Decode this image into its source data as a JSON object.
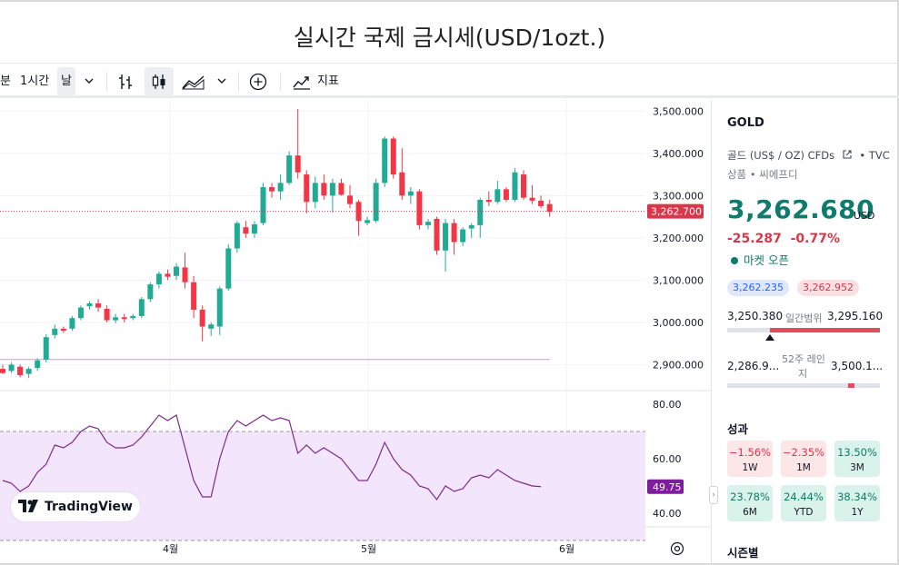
{
  "page_title": "실시간 국제 금시세(USD/1ozt.)",
  "toolbar": {
    "partial_interval": "분",
    "interval_1h": "1시간",
    "interval_day": "날",
    "indicators_label": "지표"
  },
  "chart": {
    "price_axis": [
      "3,500.000",
      "3,400.000",
      "3,300.000",
      "3,200.000",
      "3,100.000",
      "3,000.000",
      "2,900.000"
    ],
    "price_ticks": [
      3500,
      3400,
      3300,
      3200,
      3100,
      3000,
      2900
    ],
    "last_price_label": "3,262.700",
    "last_price": 3262.7,
    "reference_line": 2912,
    "rsi_axis": [
      "80.00",
      "60.00",
      "40.00"
    ],
    "rsi_ticks": [
      80,
      60,
      40
    ],
    "rsi_last_label": "49.75",
    "rsi_band": [
      70,
      30
    ],
    "time_axis": [
      "4월",
      "5월",
      "6월"
    ],
    "logo_text": "TradingView",
    "colors": {
      "up": "#22ab94",
      "down": "#f23645",
      "rsi": "#7e2a8a",
      "rsi_band_fill": "#f3e5fb",
      "last_price_bg": "#d7374b",
      "rsi_label_bg": "#7e1e9c"
    }
  },
  "chart_data": {
    "type": "candlestick",
    "price_range": [
      2860,
      3520
    ],
    "rsi_range": [
      35,
      85
    ],
    "candles": [
      [
        2890,
        2900,
        2878,
        2880
      ],
      [
        2885,
        2905,
        2880,
        2900
      ],
      [
        2895,
        2900,
        2870,
        2875
      ],
      [
        2878,
        2895,
        2868,
        2890
      ],
      [
        2892,
        2915,
        2885,
        2910
      ],
      [
        2912,
        2972,
        2905,
        2965
      ],
      [
        2970,
        2995,
        2962,
        2985
      ],
      [
        2985,
        2990,
        2975,
        2980
      ],
      [
        2985,
        3015,
        2980,
        3010
      ],
      [
        3010,
        3040,
        3005,
        3035
      ],
      [
        3038,
        3050,
        3030,
        3045
      ],
      [
        3045,
        3055,
        3025,
        3035
      ],
      [
        3032,
        3040,
        3000,
        3005
      ],
      [
        3005,
        3020,
        2998,
        3012
      ],
      [
        3012,
        3020,
        3000,
        3008
      ],
      [
        3010,
        3020,
        3005,
        3015
      ],
      [
        3015,
        3060,
        3010,
        3055
      ],
      [
        3055,
        3095,
        3048,
        3090
      ],
      [
        3090,
        3120,
        3080,
        3115
      ],
      [
        3115,
        3125,
        3100,
        3108
      ],
      [
        3110,
        3140,
        3100,
        3132
      ],
      [
        3130,
        3165,
        3080,
        3095
      ],
      [
        3095,
        3110,
        3010,
        3030
      ],
      [
        3030,
        3040,
        2955,
        2990
      ],
      [
        2985,
        3000,
        2968,
        2995
      ],
      [
        2990,
        3085,
        2970,
        3080
      ],
      [
        3080,
        3185,
        3075,
        3175
      ],
      [
        3175,
        3240,
        3165,
        3235
      ],
      [
        3225,
        3240,
        3200,
        3210
      ],
      [
        3210,
        3240,
        3200,
        3232
      ],
      [
        3235,
        3330,
        3230,
        3320
      ],
      [
        3320,
        3330,
        3295,
        3310
      ],
      [
        3310,
        3350,
        3290,
        3330
      ],
      [
        3330,
        3405,
        3325,
        3395
      ],
      [
        3395,
        3505,
        3340,
        3355
      ],
      [
        3350,
        3360,
        3258,
        3285
      ],
      [
        3285,
        3345,
        3270,
        3330
      ],
      [
        3330,
        3350,
        3290,
        3300
      ],
      [
        3300,
        3340,
        3260,
        3330
      ],
      [
        3330,
        3340,
        3300,
        3302
      ],
      [
        3300,
        3325,
        3270,
        3280
      ],
      [
        3285,
        3290,
        3205,
        3240
      ],
      [
        3235,
        3250,
        3230,
        3242
      ],
      [
        3240,
        3340,
        3235,
        3330
      ],
      [
        3330,
        3440,
        3320,
        3435
      ],
      [
        3435,
        3440,
        3340,
        3350
      ],
      [
        3355,
        3412,
        3290,
        3300
      ],
      [
        3300,
        3320,
        3280,
        3310
      ],
      [
        3310,
        3315,
        3220,
        3230
      ],
      [
        3230,
        3245,
        3220,
        3238
      ],
      [
        3245,
        3250,
        3160,
        3170
      ],
      [
        3170,
        3245,
        3120,
        3235
      ],
      [
        3235,
        3245,
        3160,
        3190
      ],
      [
        3190,
        3225,
        3180,
        3220
      ],
      [
        3222,
        3235,
        3200,
        3230
      ],
      [
        3230,
        3295,
        3200,
        3290
      ],
      [
        3290,
        3310,
        3275,
        3285
      ],
      [
        3285,
        3335,
        3280,
        3315
      ],
      [
        3315,
        3320,
        3285,
        3290
      ],
      [
        3290,
        3365,
        3285,
        3355
      ],
      [
        3350,
        3360,
        3290,
        3295
      ],
      [
        3295,
        3325,
        3280,
        3288
      ],
      [
        3288,
        3300,
        3270,
        3275
      ],
      [
        3280,
        3290,
        3250,
        3262
      ]
    ],
    "rsi": [
      52,
      51,
      48,
      50,
      55,
      58,
      65,
      64,
      66,
      70,
      72,
      71,
      66,
      64,
      64,
      65,
      68,
      72,
      76,
      74,
      76,
      64,
      52,
      46,
      46,
      60,
      70,
      74,
      72,
      74,
      76,
      74,
      75,
      74,
      62,
      65,
      62,
      64,
      62,
      60,
      56,
      52,
      52,
      58,
      66,
      60,
      56,
      54,
      50,
      49,
      45,
      50,
      48,
      49,
      53,
      54,
      53,
      56,
      54,
      52,
      51,
      50,
      49.75
    ]
  },
  "sidebar": {
    "symbol": "GOLD",
    "description": "골드 (US$ / OZ) CFDs",
    "exchange_suffix": "• TVC",
    "category": "상품 • 씨에프디",
    "price": "3,262.680",
    "currency": "USD",
    "change": "-25.287",
    "change_pct": "-0.77%",
    "market_status": "마켓 오픈",
    "bid": "3,262.235",
    "ask": "3,262.952",
    "day_low": "3,250.380",
    "day_label": "일간범위",
    "day_high": "3,295.160",
    "day_position": 0.28,
    "week52_low": "2,286.9...",
    "week52_label_1": "52주 레인",
    "week52_label_2": "지",
    "week52_high": "3,500.1...",
    "week52_position": 0.81,
    "performance_title": "성과",
    "performance": [
      {
        "value": "−1.56%",
        "period": "1W",
        "dir": "neg"
      },
      {
        "value": "−2.35%",
        "period": "1M",
        "dir": "neg"
      },
      {
        "value": "13.50%",
        "period": "3M",
        "dir": "pos"
      },
      {
        "value": "23.78%",
        "period": "6M",
        "dir": "pos"
      },
      {
        "value": "24.44%",
        "period": "YTD",
        "dir": "pos"
      },
      {
        "value": "38.34%",
        "period": "1Y",
        "dir": "pos"
      }
    ],
    "seasonal_title": "시즌별"
  }
}
